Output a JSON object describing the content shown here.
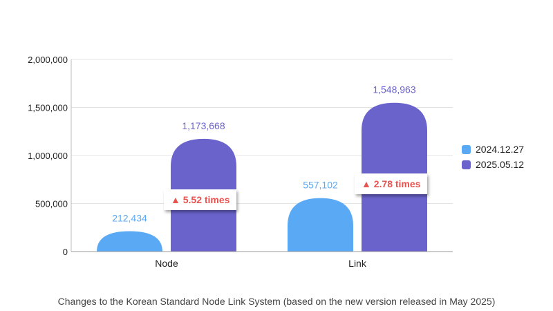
{
  "chart_data": {
    "type": "bar",
    "categories": [
      "Node",
      "Link"
    ],
    "series": [
      {
        "name": "2024.12.27",
        "color": "#5aa9f5",
        "values": [
          212434,
          557102
        ]
      },
      {
        "name": "2025.05.12",
        "color": "#6a63cc",
        "values": [
          1173668,
          1548963
        ]
      }
    ],
    "data_labels": [
      [
        "212,434",
        "557,102"
      ],
      [
        "1,173,668",
        "1,548,963"
      ]
    ],
    "yticks": [
      0,
      500000,
      1000000,
      1500000,
      2000000
    ],
    "ytick_labels": [
      "0",
      "500,000",
      "1,000,000",
      "1,500,000",
      "2,000,000"
    ],
    "ylim": [
      0,
      2000000
    ],
    "grid": true,
    "legend_position": "right",
    "annotations": [
      "▲ 5.52 times",
      "▲ 2.78 times"
    ],
    "caption": "Changes to the Korean Standard Node Link System (based on the new version released in May 2025)"
  }
}
